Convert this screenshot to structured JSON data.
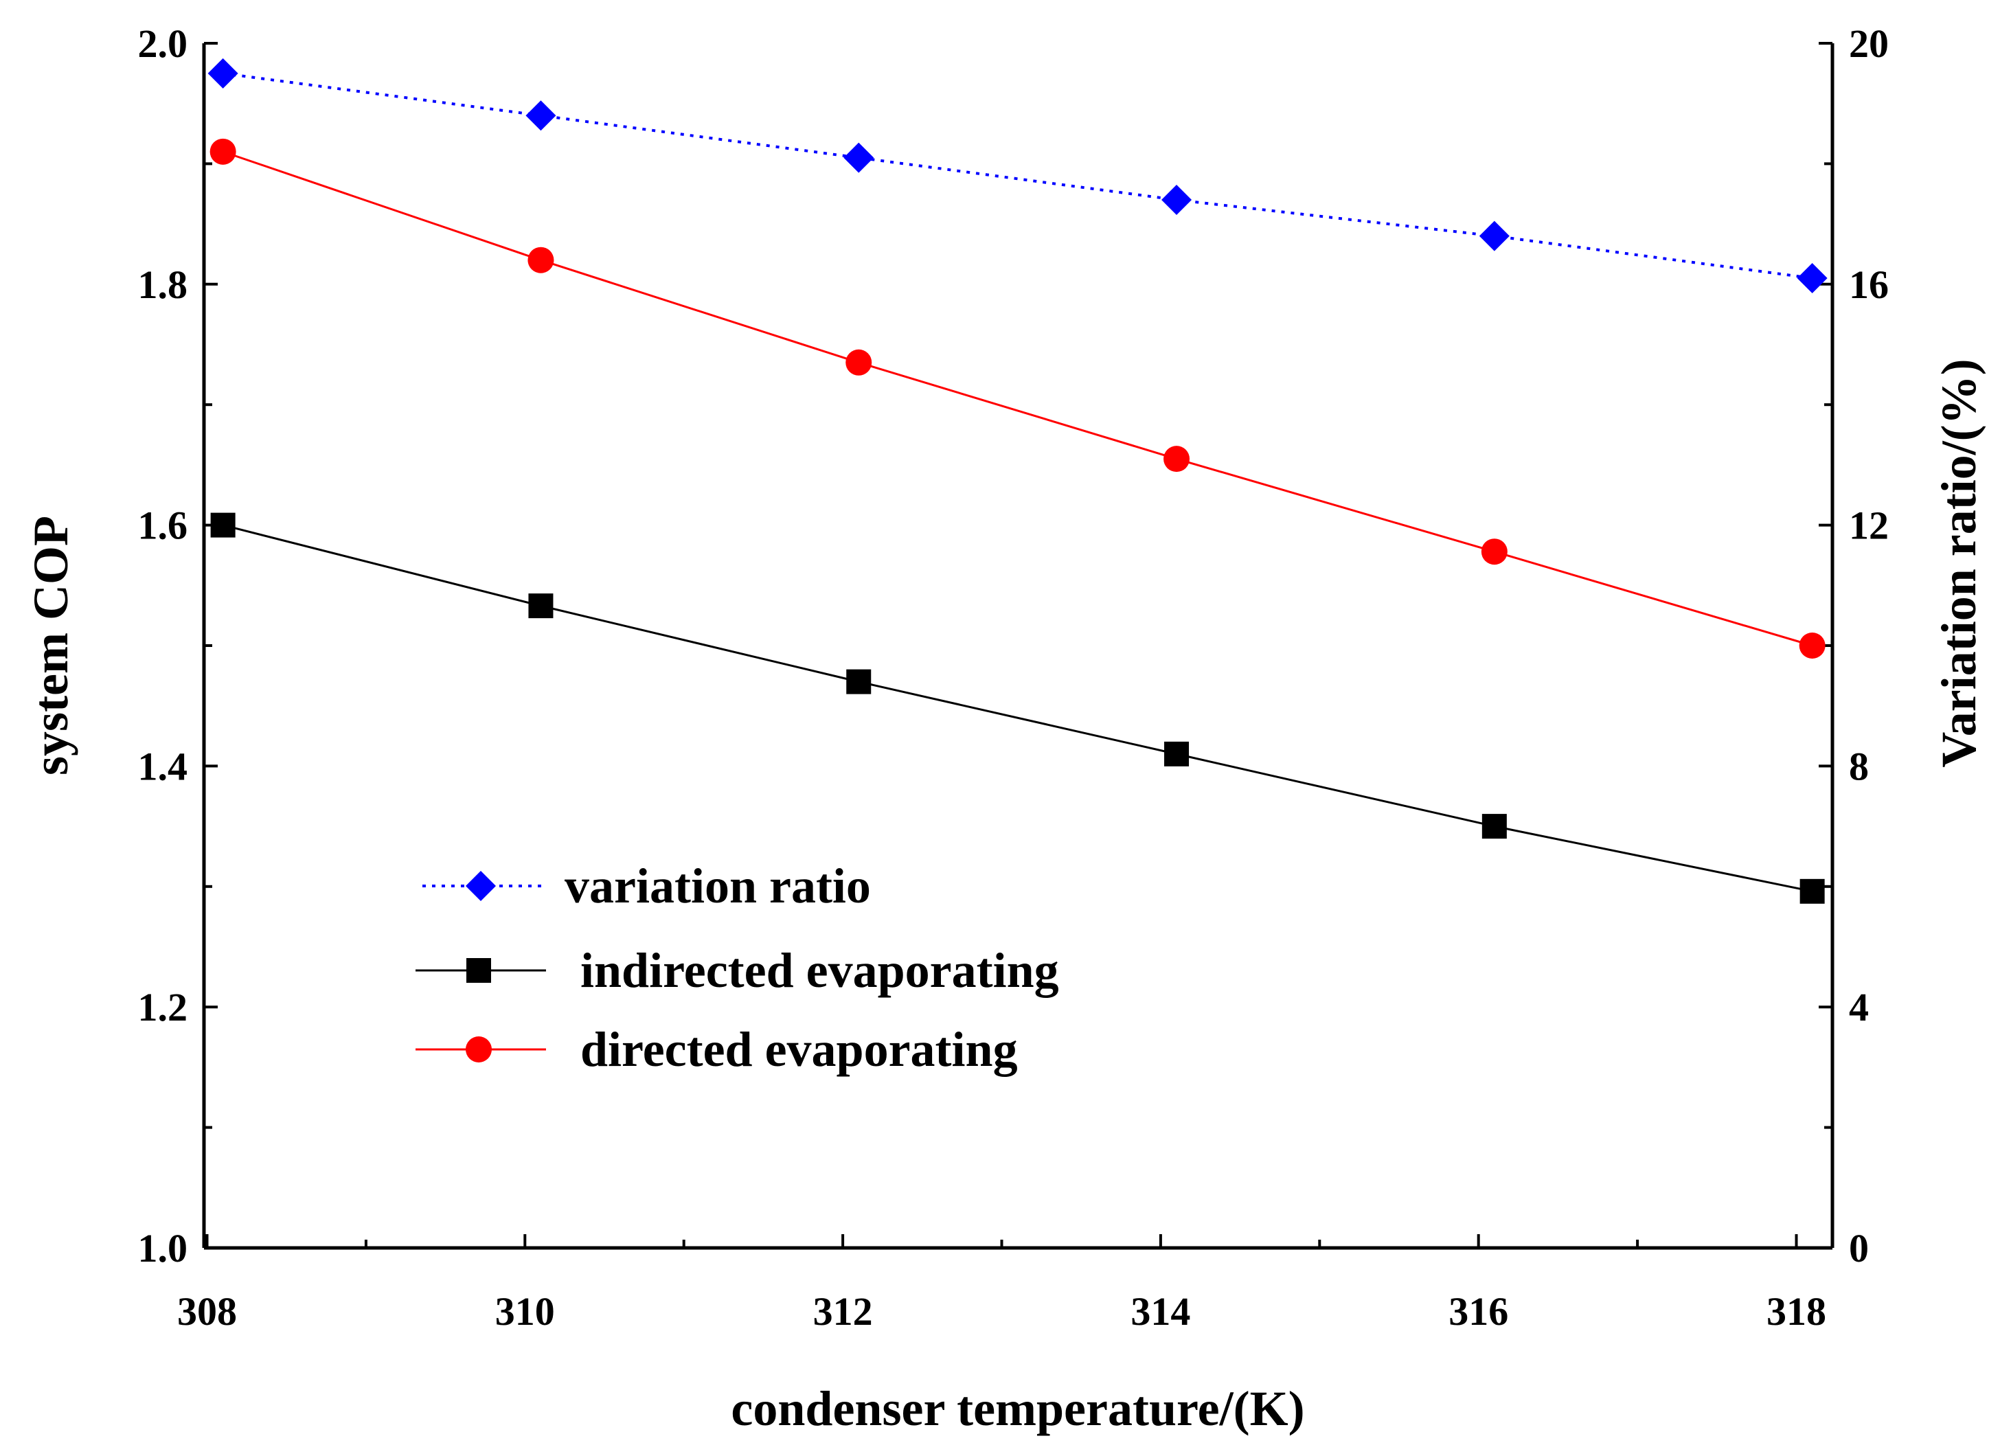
{
  "chart_data": {
    "type": "line",
    "xlabel": "condenser temperature/(K)",
    "ylabel": "system COP",
    "y2label": "Variation ratio/(%)",
    "xlim": [
      308,
      318
    ],
    "ylim": [
      1.0,
      2.0
    ],
    "y2lim": [
      0,
      20
    ],
    "x_ticks": [
      "308",
      "310",
      "312",
      "314",
      "316",
      "318"
    ],
    "y_ticks": [
      "1.0",
      "1.2",
      "1.4",
      "1.6",
      "1.8",
      "2.0"
    ],
    "y2_ticks": [
      "0",
      "4",
      "8",
      "12",
      "16",
      "20"
    ],
    "x": [
      308.1,
      310.1,
      312.1,
      314.1,
      316.1,
      318.1
    ],
    "legend_position": "center-left",
    "series": [
      {
        "name": "variation ratio",
        "axis": "right",
        "color": "#0000ff",
        "marker": "diamond",
        "line": "dotted",
        "values": [
          19.5,
          18.8,
          18.1,
          17.4,
          16.8,
          16.1
        ]
      },
      {
        "name": "indirected evaporating",
        "axis": "left",
        "color": "#000000",
        "marker": "square",
        "line": "solid",
        "values": [
          1.6,
          1.533,
          1.47,
          1.41,
          1.35,
          1.296
        ]
      },
      {
        "name": "directed evaporating",
        "axis": "left",
        "color": "#ff0000",
        "marker": "circle",
        "line": "solid",
        "values": [
          1.91,
          1.82,
          1.735,
          1.655,
          1.578,
          1.5
        ]
      }
    ]
  }
}
